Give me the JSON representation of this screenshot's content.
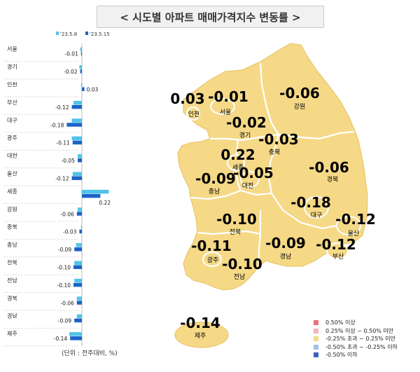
{
  "title": "< 시도별 아파트 매매가격지수 변동률 >",
  "unit_note": "(단위 : 전주대비, %)",
  "colors": {
    "prev": "#4fc3ea",
    "curr": "#1b64c8",
    "map_fill": "#f5d987",
    "map_stroke": "#ffffff"
  },
  "chart_data": {
    "type": "bar",
    "orientation": "horizontal",
    "categories": [
      "서울",
      "경기",
      "인천",
      "부산",
      "대구",
      "광주",
      "대전",
      "울산",
      "세종",
      "강원",
      "충북",
      "충남",
      "전북",
      "전남",
      "경북",
      "경남",
      "제주"
    ],
    "series": [
      {
        "name": "'23.5.8",
        "values": [
          -0.02,
          -0.03,
          -0.01,
          -0.1,
          -0.12,
          -0.12,
          -0.05,
          -0.11,
          0.32,
          -0.05,
          -0.01,
          -0.07,
          -0.09,
          -0.09,
          -0.06,
          -0.06,
          -0.15
        ]
      },
      {
        "name": "'23.5.15",
        "values": [
          -0.01,
          -0.02,
          0.03,
          -0.12,
          -0.18,
          -0.11,
          -0.05,
          -0.12,
          0.22,
          -0.06,
          -0.03,
          -0.09,
          -0.1,
          -0.1,
          -0.06,
          -0.09,
          -0.14
        ]
      }
    ],
    "value_labels": [
      "-0.01",
      "-0.02",
      "0.03",
      "-0.12",
      "-0.18",
      "-0.11",
      "-0.05",
      "-0.12",
      "0.22",
      "-0.06",
      "-0.03",
      "-0.09",
      "-0.10",
      "-0.10",
      "-0.06",
      "-0.09",
      "-0.14"
    ]
  },
  "map": {
    "regions": [
      {
        "name": "인천",
        "value": "0.03"
      },
      {
        "name": "서울",
        "value": "-0.01"
      },
      {
        "name": "강원",
        "value": "-0.06"
      },
      {
        "name": "경기",
        "value": "-0.02"
      },
      {
        "name": "충북",
        "value": "-0.03"
      },
      {
        "name": "세종",
        "value": "0.22"
      },
      {
        "name": "충남",
        "value": "-0.09"
      },
      {
        "name": "대전",
        "value": "-0.05"
      },
      {
        "name": "경북",
        "value": "-0.06"
      },
      {
        "name": "대구",
        "value": "-0.18"
      },
      {
        "name": "울산",
        "value": "-0.12"
      },
      {
        "name": "전북",
        "value": "-0.10"
      },
      {
        "name": "경남",
        "value": "-0.09"
      },
      {
        "name": "부산",
        "value": "-0.12"
      },
      {
        "name": "광주",
        "value": "-0.11"
      },
      {
        "name": "전남",
        "value": "-0.10"
      },
      {
        "name": "제주",
        "value": "-0.14"
      }
    ],
    "legend": [
      {
        "label": "0.50% 이상",
        "color": "#e8707a"
      },
      {
        "label": "0.25% 이상 ~ 0.50% 미만",
        "color": "#f3b6bc"
      },
      {
        "label": "-0.25% 초과 ~ 0.25% 미만",
        "color": "#f5d987"
      },
      {
        "label": "-0.50% 초과 ~ -0.25% 이하",
        "color": "#a9bde6"
      },
      {
        "label": "-0.50% 이하",
        "color": "#3f62b6"
      }
    ]
  }
}
